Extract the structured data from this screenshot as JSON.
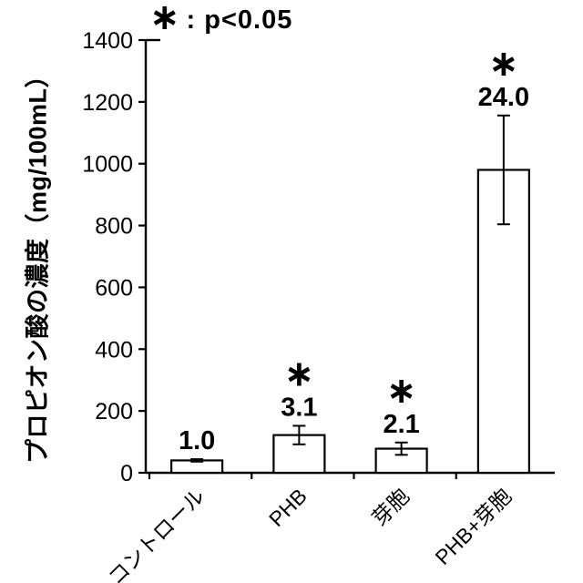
{
  "page": {
    "background": "#ffffff",
    "ink": "#000000"
  },
  "legend": {
    "symbol": "∗",
    "text": ": p<0.05"
  },
  "chart_data": {
    "type": "bar",
    "title": "",
    "categories": [
      "コントロール",
      "PHB",
      "芽胞",
      "PHB+芽胞"
    ],
    "values": [
      40,
      122,
      78,
      980
    ],
    "errors": [
      4,
      30,
      20,
      176
    ],
    "bar_labels": [
      "1.0",
      "3.1",
      "2.1",
      "24.0"
    ],
    "significant": [
      false,
      true,
      true,
      true
    ],
    "significance_symbol": "∗",
    "legend_note": "∗ : p<0.05",
    "xlabel": "",
    "ylabel": "プロピオン酸の濃度（mg/100mL）",
    "ylim": [
      0,
      1400
    ],
    "yticks": [
      0,
      200,
      400,
      600,
      800,
      1000,
      1200,
      1400
    ],
    "grid": false,
    "legend_position": "top-left",
    "bar_fill": "#ffffff",
    "bar_stroke": "#000000"
  }
}
